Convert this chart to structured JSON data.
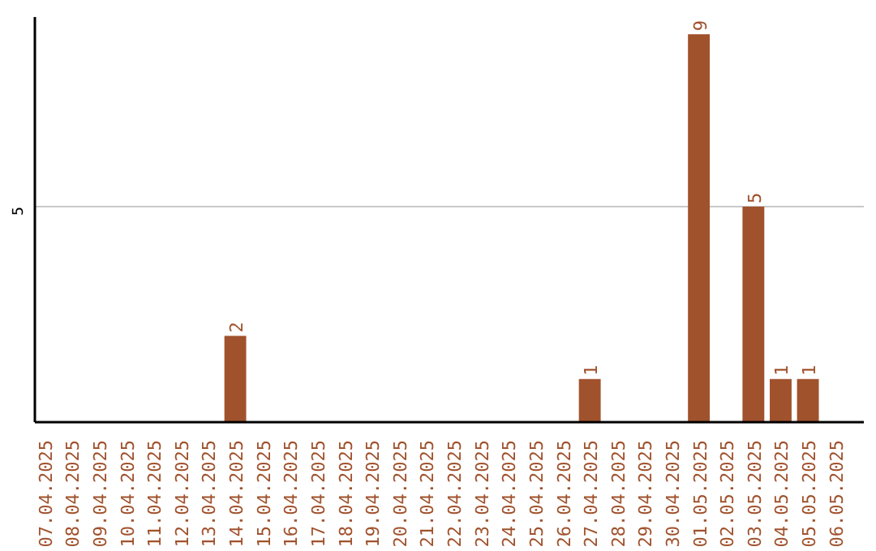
{
  "chart_data": {
    "type": "bar",
    "categories": [
      "07.04.2025",
      "08.04.2025",
      "09.04.2025",
      "10.04.2025",
      "11.04.2025",
      "12.04.2025",
      "13.04.2025",
      "14.04.2025",
      "15.04.2025",
      "16.04.2025",
      "17.04.2025",
      "18.04.2025",
      "19.04.2025",
      "20.04.2025",
      "21.04.2025",
      "22.04.2025",
      "23.04.2025",
      "24.04.2025",
      "25.04.2025",
      "26.04.2025",
      "27.04.2025",
      "28.04.2025",
      "29.04.2025",
      "30.04.2025",
      "01.05.2025",
      "02.05.2025",
      "03.05.2025",
      "04.05.2025",
      "05.05.2025",
      "06.05.2025"
    ],
    "values": [
      0,
      0,
      0,
      0,
      0,
      0,
      0,
      2,
      0,
      0,
      0,
      0,
      0,
      0,
      0,
      0,
      0,
      0,
      0,
      0,
      1,
      0,
      0,
      0,
      9,
      0,
      5,
      1,
      1,
      0
    ],
    "value_labels": [
      null,
      null,
      null,
      null,
      null,
      null,
      null,
      "2",
      null,
      null,
      null,
      null,
      null,
      null,
      null,
      null,
      null,
      null,
      null,
      null,
      "1",
      null,
      null,
      null,
      "9",
      null,
      "5",
      "1",
      "1",
      null
    ],
    "color": "#a0522d",
    "ylim": [
      0,
      9.4
    ],
    "yticks": [
      5
    ],
    "grid": "y"
  }
}
